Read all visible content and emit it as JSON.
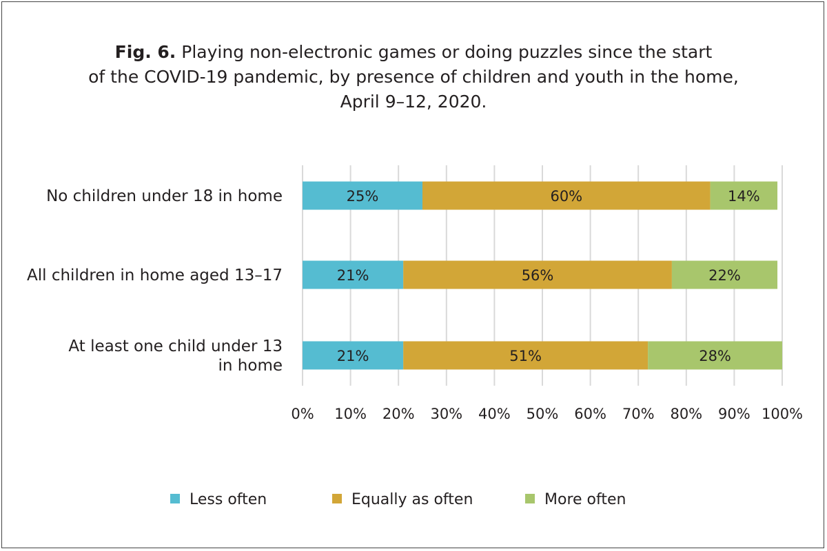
{
  "chart_data": {
    "type": "bar",
    "orientation": "horizontal",
    "stacked": true,
    "title_label": "Fig. 6.",
    "title_line1": "Playing non-electronic games or doing puzzles since the start",
    "title_line2": "of the COVID-19 pandemic, by presence of children and youth in the home,",
    "title_line3": "April 9–12, 2020.",
    "categories": [
      [
        "No children under 18 in home"
      ],
      [
        "All children in home aged 13–17"
      ],
      [
        "At least one child under 13",
        "in home"
      ]
    ],
    "series": [
      {
        "name": "Less often",
        "color": "#55bcd1",
        "values": [
          25,
          21,
          21
        ],
        "labels": [
          "25%",
          "21%",
          "21%"
        ]
      },
      {
        "name": "Equally as often",
        "color": "#d2a637",
        "values": [
          60,
          56,
          51
        ],
        "labels": [
          "60%",
          "56%",
          "51%"
        ]
      },
      {
        "name": "More often",
        "color": "#a8c66c",
        "values": [
          14,
          22,
          28
        ],
        "labels": [
          "14%",
          "22%",
          "28%"
        ]
      }
    ],
    "xlim": [
      0,
      100
    ],
    "xticks": [
      0,
      10,
      20,
      30,
      40,
      50,
      60,
      70,
      80,
      90,
      100
    ],
    "xtick_labels": [
      "0%",
      "10%",
      "20%",
      "30%",
      "40%",
      "50%",
      "60%",
      "70%",
      "80%",
      "90%",
      "100%"
    ],
    "grid": true,
    "legend_position": "bottom",
    "gridline_color": "#d9d9d9"
  }
}
